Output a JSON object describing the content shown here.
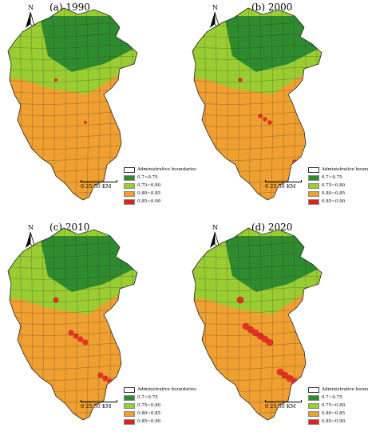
{
  "panels": [
    {
      "title": "(a) 1990"
    },
    {
      "title": "(b) 2000"
    },
    {
      "title": "(c) 2010"
    },
    {
      "title": "(d) 2020"
    }
  ],
  "north_label": "N",
  "scale_label": "0  25 50 KM",
  "legend": {
    "boundary_label": "Administrative boundaries",
    "classes": [
      {
        "label": "0.7~0.75",
        "color": "#2e8b2e"
      },
      {
        "label": "0.75~0.80",
        "color": "#9acd32"
      },
      {
        "label": "0.80~0.85",
        "color": "#f0a030"
      },
      {
        "label": "0.85~0.90",
        "color": "#e02020"
      }
    ]
  },
  "colors": {
    "boundary": "#333333"
  }
}
